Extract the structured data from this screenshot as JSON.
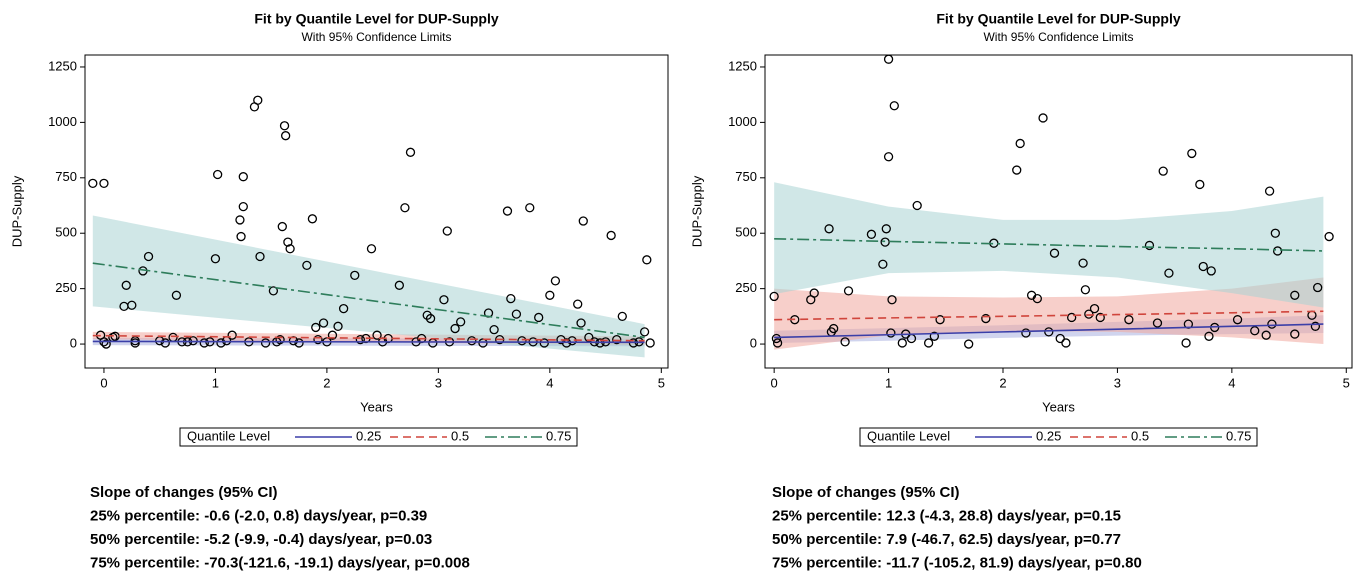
{
  "chart_data": [
    {
      "type": "scatter",
      "title": "Fit by Quantile Level for DUP-Supply",
      "subtitle": "With 95% Confidence Limits",
      "x_label": "Years",
      "y_label": "DUP-Supply",
      "xlim": [
        -0.17,
        5.06
      ],
      "ylim": [
        -108,
        1304
      ],
      "xticks": [
        0,
        1,
        2,
        3,
        4,
        5
      ],
      "yticks": [
        0,
        250,
        500,
        750,
        1000,
        1250
      ],
      "x": [
        -0.1,
        0.0,
        -0.03,
        0.0,
        0.02,
        0.08,
        0.1,
        0.18,
        0.2,
        0.25,
        0.28,
        0.28,
        0.35,
        0.4,
        0.5,
        0.55,
        0.62,
        0.65,
        0.7,
        0.75,
        0.8,
        0.9,
        0.95,
        1.0,
        1.02,
        1.05,
        1.1,
        1.15,
        1.22,
        1.23,
        1.25,
        1.25,
        1.3,
        1.35,
        1.38,
        1.4,
        1.45,
        1.52,
        1.55,
        1.58,
        1.6,
        1.62,
        1.63,
        1.65,
        1.67,
        1.7,
        1.75,
        1.82,
        1.87,
        1.9,
        1.92,
        1.97,
        2.0,
        2.05,
        2.1,
        2.15,
        2.25,
        2.3,
        2.35,
        2.4,
        2.45,
        2.5,
        2.55,
        2.65,
        2.7,
        2.75,
        2.8,
        2.85,
        2.9,
        2.93,
        2.95,
        3.05,
        3.08,
        3.1,
        3.15,
        3.2,
        3.3,
        3.4,
        3.45,
        3.5,
        3.55,
        3.62,
        3.65,
        3.7,
        3.75,
        3.85,
        3.82,
        3.9,
        3.95,
        4.0,
        4.05,
        4.1,
        4.15,
        4.2,
        4.25,
        4.28,
        4.3,
        4.35,
        4.4,
        4.45,
        4.5,
        4.55,
        4.6,
        4.65,
        4.75,
        4.8,
        4.85,
        4.87,
        4.9
      ],
      "values": [
        725,
        725,
        40,
        10,
        0,
        30,
        35,
        170,
        265,
        175,
        15,
        5,
        330,
        395,
        15,
        5,
        30,
        220,
        10,
        10,
        15,
        5,
        10,
        385,
        765,
        5,
        15,
        40,
        560,
        485,
        620,
        755,
        10,
        1070,
        1100,
        395,
        5,
        240,
        10,
        20,
        530,
        985,
        940,
        460,
        430,
        15,
        5,
        355,
        565,
        75,
        20,
        95,
        10,
        40,
        80,
        160,
        310,
        20,
        25,
        430,
        40,
        10,
        25,
        265,
        615,
        865,
        10,
        25,
        130,
        115,
        5,
        200,
        510,
        10,
        70,
        100,
        15,
        5,
        140,
        65,
        20,
        600,
        205,
        135,
        15,
        10,
        615,
        120,
        5,
        220,
        285,
        20,
        5,
        15,
        180,
        95,
        555,
        30,
        10,
        5,
        10,
        490,
        20,
        125,
        5,
        10,
        55,
        380,
        5
      ],
      "quantile_lines": {
        "legend_title": "Quantile Level",
        "series": [
          {
            "name": "0.25",
            "color": "#3b3fa8",
            "band_color": "#aab0e0",
            "dash": "solid",
            "x": [
              -0.1,
              4.85
            ],
            "values": [
              12,
              8
            ],
            "lower": [
              -5,
              -10
            ],
            "upper": [
              28,
              24
            ]
          },
          {
            "name": "0.5",
            "color": "#d0453c",
            "band_color": "#f0a89f",
            "dash": "dashed",
            "x": [
              -0.1,
              4.85
            ],
            "values": [
              38,
              15
            ],
            "lower": [
              22,
              -5
            ],
            "upper": [
              55,
              35
            ]
          },
          {
            "name": "0.75",
            "color": "#2e7d5b",
            "band_color": "#a9d3d3",
            "dash": "dashdot",
            "x": [
              -0.1,
              4.85
            ],
            "values": [
              365,
              30
            ],
            "lower": [
              170,
              -60
            ],
            "upper": [
              580,
              90
            ]
          }
        ]
      },
      "notes": [
        "Slope of changes (95% CI)",
        "25% percentile:   -0.6 (-2.0, 0.8) days/year, p=0.39",
        "50% percentile:   -5.2 (-9.9, -0.4) days/year, p=0.03",
        "75% percentile: -70.3(-121.6, -19.1) days/year, p=0.008"
      ]
    },
    {
      "type": "scatter",
      "title": "Fit by Quantile Level for DUP-Supply",
      "subtitle": "With 95% Confidence Limits",
      "x_label": "Years",
      "y_label": "DUP-Supply",
      "xlim": [
        -0.08,
        5.05
      ],
      "ylim": [
        -108,
        1304
      ],
      "xticks": [
        0,
        1,
        2,
        3,
        4,
        5
      ],
      "yticks": [
        0,
        250,
        500,
        750,
        1000,
        1250
      ],
      "x": [
        0.0,
        0.02,
        0.03,
        0.18,
        0.32,
        0.35,
        0.48,
        0.5,
        0.52,
        0.62,
        0.65,
        0.85,
        0.95,
        0.97,
        0.98,
        1.0,
        1.0,
        1.02,
        1.03,
        1.05,
        1.12,
        1.15,
        1.2,
        1.25,
        1.35,
        1.4,
        1.45,
        1.7,
        1.85,
        1.92,
        2.12,
        2.15,
        2.2,
        2.25,
        2.3,
        2.35,
        2.4,
        2.45,
        2.5,
        2.55,
        2.6,
        2.7,
        2.72,
        2.75,
        2.8,
        2.85,
        3.1,
        3.28,
        3.35,
        3.4,
        3.45,
        3.6,
        3.62,
        3.65,
        3.72,
        3.75,
        3.8,
        3.82,
        3.85,
        4.05,
        4.2,
        4.3,
        4.33,
        4.35,
        4.38,
        4.4,
        4.55,
        4.7,
        4.73,
        4.75,
        4.85,
        4.55
      ],
      "values": [
        215,
        25,
        5,
        110,
        200,
        230,
        520,
        55,
        70,
        10,
        240,
        495,
        360,
        460,
        520,
        1285,
        845,
        50,
        200,
        1075,
        5,
        45,
        25,
        625,
        5,
        35,
        110,
        0,
        115,
        455,
        785,
        905,
        50,
        220,
        205,
        1020,
        55,
        410,
        25,
        5,
        120,
        365,
        245,
        135,
        160,
        120,
        110,
        445,
        95,
        780,
        320,
        5,
        90,
        860,
        720,
        350,
        35,
        330,
        75,
        110,
        60,
        40,
        690,
        90,
        500,
        420,
        220,
        130,
        80,
        255,
        485,
        45
      ],
      "quantile_lines": {
        "legend_title": "Quantile Level",
        "series": [
          {
            "name": "0.25",
            "color": "#3b3fa8",
            "band_color": "#aab0e0",
            "dash": "solid",
            "x": [
              0,
              1,
              2,
              3,
              4,
              4.8
            ],
            "values": [
              30,
              42,
              55,
              67,
              80,
              90
            ],
            "lower": [
              5,
              15,
              28,
              38,
              45,
              50
            ],
            "upper": [
              60,
              72,
              85,
              100,
              115,
              130
            ]
          },
          {
            "name": "0.5",
            "color": "#d0453c",
            "band_color": "#f0a89f",
            "dash": "dashed",
            "x": [
              0,
              1,
              2,
              3,
              4,
              4.8
            ],
            "values": [
              110,
              118,
              125,
              133,
              141,
              148
            ],
            "lower": [
              -25,
              40,
              60,
              55,
              30,
              0
            ],
            "upper": [
              250,
              215,
              210,
              215,
              250,
              300
            ]
          },
          {
            "name": "0.75",
            "color": "#2e7d5b",
            "band_color": "#a9d3d3",
            "dash": "dashdot",
            "x": [
              0,
              1,
              2,
              3,
              4,
              4.8
            ],
            "values": [
              475,
              463,
              452,
              440,
              430,
              420
            ],
            "lower": [
              225,
              320,
              330,
              300,
              230,
              165
            ],
            "upper": [
              730,
              620,
              560,
              560,
              600,
              665
            ]
          }
        ]
      },
      "notes": [
        "Slope of changes (95% CI)",
        "25% percentile:  12.3 (-4.3, 28.8) days/year, p=0.15",
        "50% percentile:  7.9 (-46.7, 62.5) days/year, p=0.77",
        "75% percentile: -11.7 (-105.2, 81.9) days/year, p=0.80"
      ]
    }
  ]
}
